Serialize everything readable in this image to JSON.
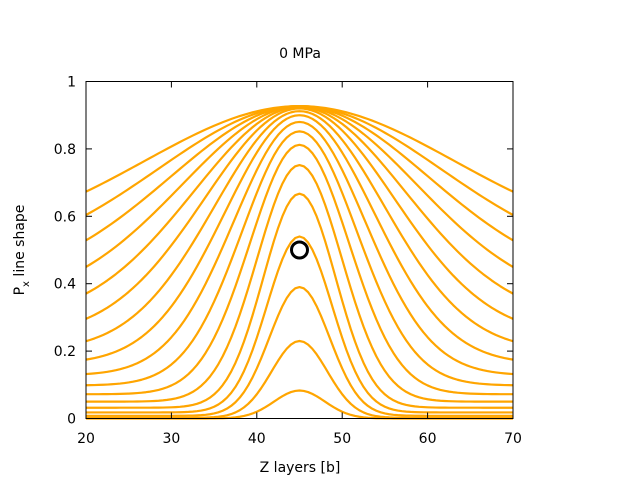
{
  "chart_data": {
    "type": "line",
    "title": "0 MPa",
    "xlabel": "Z layers [b]",
    "ylabel_main": "P",
    "ylabel_sub": "x",
    "ylabel_rest": " line shape",
    "xlim": [
      20,
      70
    ],
    "ylim": [
      0,
      1
    ],
    "xticks": [
      20,
      30,
      40,
      50,
      60,
      70
    ],
    "yticks": [
      0,
      0.2,
      0.4,
      0.6,
      0.8,
      1
    ],
    "ytick_labels": [
      "0",
      "0.2",
      "0.4",
      "0.6",
      "0.8",
      "1"
    ],
    "grid": false,
    "line_color": "#ffa500",
    "marker_color": "#000000",
    "center_x": 45,
    "peak_values": [
      0.083,
      0.23,
      0.39,
      0.54,
      0.667,
      0.752,
      0.812,
      0.852,
      0.88,
      0.9,
      0.912,
      0.92,
      0.924,
      0.926,
      0.927,
      0.927,
      0.927
    ],
    "profile_widths": [
      4.2,
      4.6,
      5.0,
      5.4,
      6.0,
      7.0,
      8.2,
      9.5,
      10.9,
      12.4,
      14.0,
      15.7,
      17.5,
      19.4,
      21.4,
      23.5,
      25.7
    ],
    "marker": {
      "x": 45,
      "y": 0.5
    }
  }
}
